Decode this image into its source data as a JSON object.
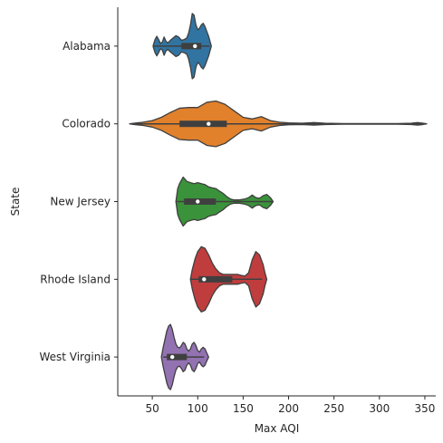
{
  "chart_data": {
    "type": "violin",
    "orientation": "horizontal",
    "title": "",
    "xlabel": "Max AQI",
    "ylabel": "State",
    "xlim": [
      12,
      362
    ],
    "xticks": [
      50,
      100,
      150,
      200,
      250,
      300,
      350
    ],
    "grid": false,
    "legend": "none",
    "categories": [
      "Alabama",
      "Colorado",
      "New Jersey",
      "Rhode Island",
      "West Virginia"
    ],
    "colors": [
      "#3274a1",
      "#e1812c",
      "#3a923a",
      "#c03d3e",
      "#9372b2"
    ],
    "violins": [
      {
        "category": "Alabama",
        "min": 51,
        "q1": 82,
        "median": 97,
        "q3": 104,
        "max": 113,
        "density": [
          [
            51,
            0.02
          ],
          [
            53,
            0.2
          ],
          [
            55,
            0.3
          ],
          [
            57,
            0.2
          ],
          [
            59,
            0.08
          ],
          [
            61,
            0.12
          ],
          [
            63,
            0.28
          ],
          [
            65,
            0.15
          ],
          [
            67,
            0.1
          ],
          [
            70,
            0.18
          ],
          [
            73,
            0.25
          ],
          [
            76,
            0.32
          ],
          [
            79,
            0.28
          ],
          [
            82,
            0.18
          ],
          [
            85,
            0.2
          ],
          [
            88,
            0.25
          ],
          [
            90,
            0.4
          ],
          [
            92,
            0.65
          ],
          [
            94,
            1.0
          ],
          [
            96,
            0.95
          ],
          [
            98,
            0.65
          ],
          [
            100,
            0.5
          ],
          [
            102,
            0.55
          ],
          [
            104,
            0.65
          ],
          [
            106,
            0.7
          ],
          [
            108,
            0.6
          ],
          [
            110,
            0.45
          ],
          [
            112,
            0.3
          ],
          [
            114,
            0.1
          ],
          [
            115,
            0.0
          ]
        ]
      },
      {
        "category": "Colorado",
        "min": 27,
        "q1": 80,
        "median": 112,
        "q3": 132,
        "max": 352,
        "density": [
          [
            25,
            0.0
          ],
          [
            30,
            0.02
          ],
          [
            40,
            0.05
          ],
          [
            50,
            0.1
          ],
          [
            60,
            0.2
          ],
          [
            70,
            0.35
          ],
          [
            80,
            0.48
          ],
          [
            90,
            0.5
          ],
          [
            100,
            0.5
          ],
          [
            110,
            0.66
          ],
          [
            120,
            0.7
          ],
          [
            130,
            0.6
          ],
          [
            140,
            0.4
          ],
          [
            150,
            0.2
          ],
          [
            160,
            0.15
          ],
          [
            170,
            0.22
          ],
          [
            180,
            0.1
          ],
          [
            190,
            0.05
          ],
          [
            200,
            0.03
          ],
          [
            215,
            0.02
          ],
          [
            228,
            0.04
          ],
          [
            240,
            0.02
          ],
          [
            260,
            0.01
          ],
          [
            280,
            0.01
          ],
          [
            300,
            0.01
          ],
          [
            320,
            0.01
          ],
          [
            335,
            0.02
          ],
          [
            342,
            0.04
          ],
          [
            348,
            0.02
          ],
          [
            352,
            0.0
          ]
        ]
      },
      {
        "category": "New Jersey",
        "min": 77,
        "q1": 85,
        "median": 100,
        "q3": 120,
        "max": 182,
        "density": [
          [
            76,
            0.0
          ],
          [
            78,
            0.4
          ],
          [
            80,
            0.55
          ],
          [
            84,
            0.75
          ],
          [
            88,
            0.62
          ],
          [
            92,
            0.58
          ],
          [
            96,
            0.55
          ],
          [
            100,
            0.58
          ],
          [
            104,
            0.55
          ],
          [
            108,
            0.52
          ],
          [
            112,
            0.45
          ],
          [
            116,
            0.42
          ],
          [
            120,
            0.4
          ],
          [
            124,
            0.32
          ],
          [
            128,
            0.25
          ],
          [
            132,
            0.15
          ],
          [
            136,
            0.08
          ],
          [
            140,
            0.05
          ],
          [
            146,
            0.05
          ],
          [
            152,
            0.08
          ],
          [
            156,
            0.12
          ],
          [
            160,
            0.2
          ],
          [
            164,
            0.12
          ],
          [
            168,
            0.1
          ],
          [
            172,
            0.18
          ],
          [
            176,
            0.22
          ],
          [
            180,
            0.12
          ],
          [
            183,
            0.0
          ]
        ]
      },
      {
        "category": "Rhode Island",
        "min": 92,
        "q1": 101,
        "median": 107,
        "q3": 138,
        "max": 171,
        "density": [
          [
            92,
            0.0
          ],
          [
            94,
            0.3
          ],
          [
            97,
            0.62
          ],
          [
            100,
            0.85
          ],
          [
            104,
            1.0
          ],
          [
            108,
            0.95
          ],
          [
            112,
            0.75
          ],
          [
            116,
            0.5
          ],
          [
            120,
            0.32
          ],
          [
            124,
            0.2
          ],
          [
            128,
            0.15
          ],
          [
            132,
            0.15
          ],
          [
            136,
            0.15
          ],
          [
            140,
            0.15
          ],
          [
            144,
            0.15
          ],
          [
            148,
            0.12
          ],
          [
            152,
            0.1
          ],
          [
            156,
            0.2
          ],
          [
            160,
            0.6
          ],
          [
            164,
            0.85
          ],
          [
            168,
            0.75
          ],
          [
            172,
            0.45
          ],
          [
            174,
            0.2
          ],
          [
            176,
            0.0
          ]
        ]
      },
      {
        "category": "West Virginia",
        "min": 62,
        "q1": 66,
        "median": 72,
        "q3": 88,
        "max": 107,
        "density": [
          [
            60,
            0.0
          ],
          [
            62,
            0.3
          ],
          [
            64,
            0.55
          ],
          [
            66,
            0.8
          ],
          [
            68,
            0.95
          ],
          [
            70,
            1.0
          ],
          [
            72,
            0.85
          ],
          [
            74,
            0.6
          ],
          [
            76,
            0.4
          ],
          [
            78,
            0.3
          ],
          [
            80,
            0.28
          ],
          [
            82,
            0.35
          ],
          [
            84,
            0.45
          ],
          [
            86,
            0.4
          ],
          [
            88,
            0.25
          ],
          [
            90,
            0.18
          ],
          [
            92,
            0.25
          ],
          [
            94,
            0.4
          ],
          [
            96,
            0.45
          ],
          [
            98,
            0.35
          ],
          [
            100,
            0.2
          ],
          [
            102,
            0.15
          ],
          [
            104,
            0.25
          ],
          [
            106,
            0.3
          ],
          [
            108,
            0.25
          ],
          [
            110,
            0.12
          ],
          [
            112,
            0.0
          ]
        ]
      }
    ]
  }
}
